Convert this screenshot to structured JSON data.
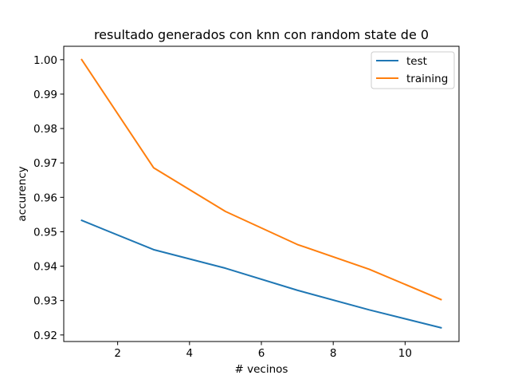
{
  "chart_data": {
    "type": "line",
    "title": "resultado generados con knn con random state de 0",
    "xlabel": "# vecinos",
    "ylabel": "accurency",
    "xlim": [
      0.5,
      11.5
    ],
    "ylim": [
      0.9181,
      1.0039
    ],
    "xticks": [
      2,
      4,
      6,
      8,
      10
    ],
    "xtick_labels": [
      "2",
      "4",
      "6",
      "8",
      "10"
    ],
    "yticks": [
      0.92,
      0.93,
      0.94,
      0.95,
      0.96,
      0.97,
      0.98,
      0.99,
      1.0
    ],
    "ytick_labels": [
      "0.92",
      "0.93",
      "0.94",
      "0.95",
      "0.96",
      "0.97",
      "0.98",
      "0.99",
      "1.00"
    ],
    "x": [
      1,
      3,
      5,
      7,
      9,
      11
    ],
    "series": [
      {
        "name": "test",
        "color": "#1f77b4",
        "values": [
          0.9533,
          0.9448,
          0.9394,
          0.933,
          0.9273,
          0.9221
        ]
      },
      {
        "name": "training",
        "color": "#ff7f0e",
        "values": [
          1.0,
          0.9686,
          0.9559,
          0.9463,
          0.9391,
          0.9303
        ]
      }
    ],
    "grid": false,
    "legend_position": "top-right"
  }
}
